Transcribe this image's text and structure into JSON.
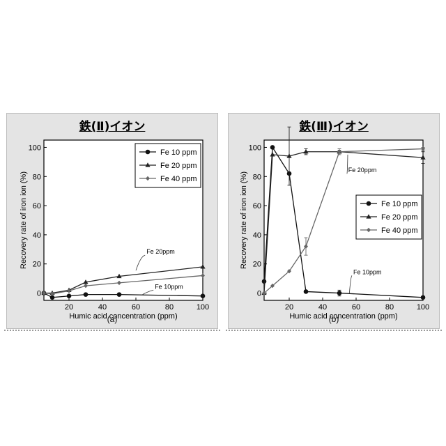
{
  "chart_data": [
    {
      "type": "line",
      "title": "鉄(Ⅱ)イオン",
      "caption": "(a)",
      "xlabel": "Humic acid concentration (ppm)",
      "ylabel": "Recovery rate of iron ion (%)",
      "xlim": [
        5,
        100
      ],
      "ylim": [
        -5,
        105
      ],
      "xticks": [
        20,
        40,
        60,
        80,
        100
      ],
      "yticks": [
        0,
        20,
        40,
        60,
        80,
        100
      ],
      "legend_position": "top-right",
      "series": [
        {
          "name": "Fe 10 ppm",
          "marker": "circle",
          "color": "#111111",
          "x": [
            5,
            10,
            20,
            30,
            50,
            100
          ],
          "y": [
            0,
            -3,
            -2,
            -1,
            -1,
            -2
          ]
        },
        {
          "name": "Fe 20 ppm",
          "marker": "triangle",
          "color": "#222222",
          "x": [
            5,
            10,
            20,
            30,
            50,
            100
          ],
          "y": [
            0,
            0,
            2,
            7.5,
            11.5,
            18
          ]
        },
        {
          "name": "Fe 40 ppm",
          "marker": "diamond",
          "color": "#666666",
          "x": [
            5,
            10,
            20,
            30,
            50,
            100
          ],
          "y": [
            0,
            -0.5,
            1.5,
            5,
            7,
            12
          ]
        }
      ],
      "annotations": [
        {
          "text": "Fe 20ppm",
          "x": 73,
          "y": 27,
          "arrow_to": [
            60,
            15.5
          ]
        },
        {
          "text": "Fe 10ppm",
          "x": 78,
          "y": 3,
          "arrow_to": [
            64,
            -1
          ]
        }
      ]
    },
    {
      "type": "line",
      "title": "鉄(Ⅲ)イオン",
      "caption": "(b)",
      "xlabel": "Humic acid concentration (ppm)",
      "ylabel": "Recovery rate of iron ion (%)",
      "xlim": [
        5,
        100
      ],
      "ylim": [
        -5,
        105
      ],
      "xticks": [
        20,
        40,
        60,
        80,
        100
      ],
      "yticks": [
        0,
        20,
        40,
        60,
        80,
        100
      ],
      "legend_position": "center-right",
      "series": [
        {
          "name": "Fe 10 ppm",
          "marker": "circle",
          "color": "#111111",
          "x": [
            5,
            10,
            20,
            30,
            50,
            100
          ],
          "y": [
            8,
            100,
            82,
            1,
            0,
            -3
          ],
          "err": [
            0,
            0,
            0,
            0,
            2,
            0
          ]
        },
        {
          "name": "Fe 20 ppm",
          "marker": "triangle",
          "color": "#222222",
          "x": [
            5,
            10,
            20,
            30,
            50,
            100
          ],
          "y": [
            0,
            95,
            94,
            97,
            97,
            93
          ],
          "err": [
            0,
            0,
            20,
            2,
            1,
            4
          ]
        },
        {
          "name": "Fe 40 ppm",
          "marker": "diamond",
          "color": "#666666",
          "x": [
            5,
            10,
            20,
            30,
            50,
            100
          ],
          "y": [
            0,
            5,
            15,
            32,
            97,
            99
          ],
          "err": [
            0,
            0,
            0,
            6,
            2,
            1
          ]
        }
      ],
      "annotations": [
        {
          "text": "Fe 20ppm",
          "x": 62,
          "y": 83,
          "arrow_to": [
            55,
            95
          ]
        },
        {
          "text": "Fe 10ppm",
          "x": 65,
          "y": 13,
          "arrow_to": [
            56,
            0
          ]
        }
      ]
    }
  ]
}
